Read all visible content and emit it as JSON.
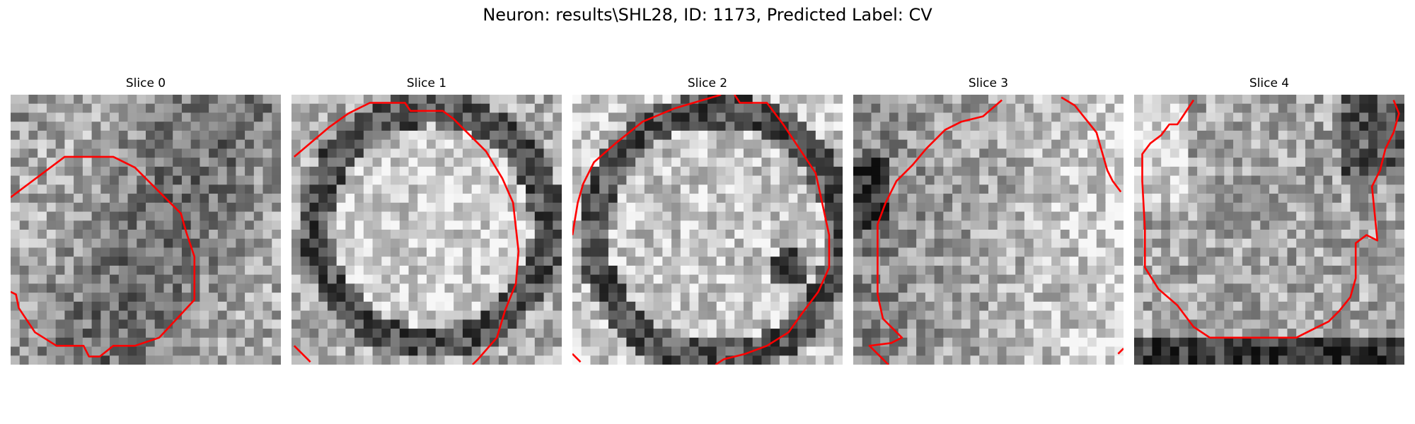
{
  "figure": {
    "title": "Neuron: results\\SHL28, ID: 1173, Predicted Label: CV"
  },
  "panels": [
    {
      "title": "Slice 0",
      "seed": 11,
      "style": "noise"
    },
    {
      "title": "Slice 1",
      "seed": 23,
      "style": "ring"
    },
    {
      "title": "Slice 2",
      "seed": 37,
      "style": "ring-dark"
    },
    {
      "title": "Slice 3",
      "seed": 41,
      "style": "bright-right"
    },
    {
      "title": "Slice 4",
      "seed": 53,
      "style": "bottom-dark"
    }
  ],
  "colors": {
    "contour": "#ff0000",
    "background": "#ffffff",
    "text": "#000000"
  },
  "contours": [
    [
      [
        [
          0.0,
          0.38
        ],
        [
          0.2,
          0.23
        ],
        [
          0.38,
          0.23
        ],
        [
          0.46,
          0.27
        ],
        [
          0.63,
          0.44
        ],
        [
          0.65,
          0.51
        ],
        [
          0.68,
          0.6
        ],
        [
          0.68,
          0.76
        ],
        [
          0.55,
          0.9
        ],
        [
          0.46,
          0.93
        ],
        [
          0.38,
          0.93
        ],
        [
          0.33,
          0.97
        ],
        [
          0.29,
          0.97
        ],
        [
          0.27,
          0.93
        ],
        [
          0.17,
          0.93
        ],
        [
          0.09,
          0.88
        ],
        [
          0.03,
          0.79
        ],
        [
          0.02,
          0.74
        ],
        [
          0.0,
          0.73
        ]
      ]
    ],
    [
      [
        [
          0.01,
          0.23
        ],
        [
          0.14,
          0.12
        ],
        [
          0.21,
          0.07
        ],
        [
          0.29,
          0.03
        ],
        [
          0.42,
          0.03
        ],
        [
          0.44,
          0.06
        ],
        [
          0.56,
          0.06
        ],
        [
          0.6,
          0.09
        ],
        [
          0.72,
          0.21
        ],
        [
          0.78,
          0.31
        ],
        [
          0.82,
          0.4
        ],
        [
          0.84,
          0.58
        ],
        [
          0.83,
          0.7
        ],
        [
          0.79,
          0.8
        ],
        [
          0.76,
          0.9
        ],
        [
          0.69,
          0.98
        ],
        [
          0.67,
          1.0
        ]
      ],
      [
        [
          0.01,
          0.93
        ],
        [
          0.07,
          0.99
        ]
      ]
    ],
    [
      [
        [
          0.0,
          0.52
        ],
        [
          0.02,
          0.4
        ],
        [
          0.04,
          0.33
        ],
        [
          0.08,
          0.25
        ],
        [
          0.16,
          0.18
        ],
        [
          0.26,
          0.1
        ],
        [
          0.38,
          0.05
        ],
        [
          0.55,
          0.0
        ]
      ],
      [
        [
          0.6,
          0.0
        ],
        [
          0.62,
          0.03
        ],
        [
          0.72,
          0.03
        ],
        [
          0.78,
          0.11
        ],
        [
          0.84,
          0.2
        ],
        [
          0.9,
          0.29
        ],
        [
          0.92,
          0.38
        ],
        [
          0.95,
          0.52
        ],
        [
          0.95,
          0.64
        ],
        [
          0.91,
          0.73
        ],
        [
          0.85,
          0.81
        ],
        [
          0.8,
          0.88
        ],
        [
          0.72,
          0.93
        ],
        [
          0.64,
          0.96
        ],
        [
          0.56,
          0.98
        ],
        [
          0.53,
          1.0
        ]
      ],
      [
        [
          0.0,
          0.96
        ],
        [
          0.03,
          0.99
        ]
      ]
    ],
    [
      [
        [
          0.55,
          0.02
        ],
        [
          0.48,
          0.08
        ],
        [
          0.4,
          0.1
        ],
        [
          0.34,
          0.13
        ],
        [
          0.27,
          0.2
        ],
        [
          0.22,
          0.26
        ],
        [
          0.16,
          0.32
        ],
        [
          0.12,
          0.4
        ],
        [
          0.09,
          0.48
        ],
        [
          0.09,
          0.6
        ],
        [
          0.09,
          0.74
        ],
        [
          0.11,
          0.83
        ],
        [
          0.18,
          0.9
        ],
        [
          0.14,
          0.92
        ],
        [
          0.06,
          0.93
        ],
        [
          0.13,
          1.0
        ]
      ],
      [
        [
          0.77,
          0.01
        ],
        [
          0.82,
          0.04
        ],
        [
          0.9,
          0.14
        ],
        [
          0.92,
          0.21
        ],
        [
          0.94,
          0.28
        ],
        [
          0.96,
          0.32
        ],
        [
          0.99,
          0.36
        ]
      ],
      [
        [
          0.98,
          0.96
        ],
        [
          1.0,
          0.94
        ]
      ]
    ],
    [
      [
        [
          0.22,
          0.02
        ],
        [
          0.18,
          0.08
        ],
        [
          0.16,
          0.11
        ],
        [
          0.13,
          0.11
        ],
        [
          0.1,
          0.15
        ],
        [
          0.06,
          0.18
        ],
        [
          0.03,
          0.22
        ],
        [
          0.03,
          0.32
        ],
        [
          0.04,
          0.5
        ],
        [
          0.04,
          0.64
        ],
        [
          0.09,
          0.72
        ],
        [
          0.16,
          0.78
        ],
        [
          0.22,
          0.86
        ],
        [
          0.28,
          0.9
        ],
        [
          0.34,
          0.9
        ],
        [
          0.39,
          0.9
        ],
        [
          0.44,
          0.9
        ],
        [
          0.6,
          0.9
        ],
        [
          0.66,
          0.87
        ],
        [
          0.72,
          0.84
        ],
        [
          0.76,
          0.8
        ],
        [
          0.8,
          0.75
        ],
        [
          0.82,
          0.68
        ],
        [
          0.82,
          0.55
        ],
        [
          0.86,
          0.52
        ],
        [
          0.9,
          0.54
        ],
        [
          0.89,
          0.44
        ],
        [
          0.88,
          0.34
        ],
        [
          0.91,
          0.28
        ],
        [
          0.93,
          0.2
        ],
        [
          0.96,
          0.14
        ],
        [
          0.98,
          0.07
        ],
        [
          0.96,
          0.02
        ]
      ]
    ]
  ]
}
